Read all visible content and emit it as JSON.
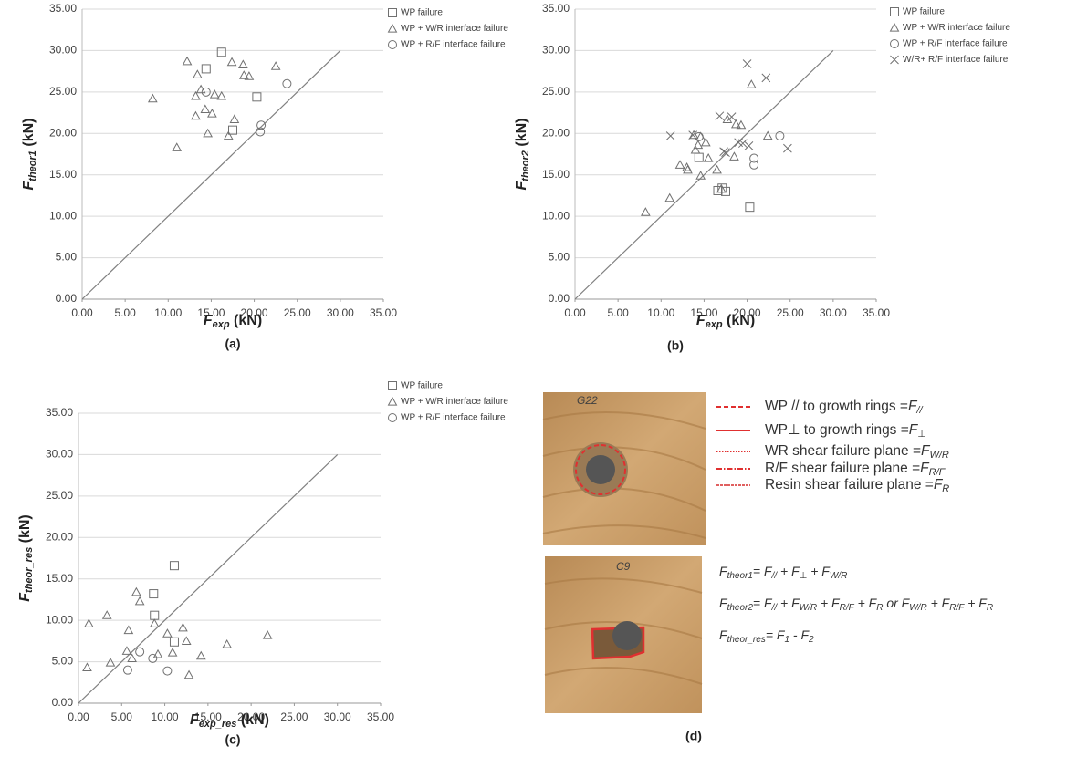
{
  "chart_data": [
    {
      "type": "scatter",
      "caption": "(a)",
      "x_label": {
        "symbol": "F",
        "subscript": "exp",
        "unit": " (kN)"
      },
      "y_label": {
        "symbol": "F",
        "subscript": "theor1",
        "unit": " (kN)"
      },
      "xlim": [
        0,
        35
      ],
      "ylim": [
        0,
        35
      ],
      "xticks": [
        {
          "value": 0,
          "label": "0.00"
        },
        {
          "value": 5,
          "label": "5.00"
        },
        {
          "value": 10,
          "label": "10.00"
        },
        {
          "value": 15,
          "label": "15.00"
        },
        {
          "value": 20,
          "label": "20.00"
        },
        {
          "value": 25,
          "label": "25.00"
        },
        {
          "value": 30,
          "label": "30.00"
        },
        {
          "value": 35,
          "label": "35.00"
        }
      ],
      "yticks": [
        {
          "value": 0,
          "label": "0.00"
        },
        {
          "value": 5,
          "label": "5.00"
        },
        {
          "value": 10,
          "label": "10.00"
        },
        {
          "value": 15,
          "label": "15.00"
        },
        {
          "value": 20,
          "label": "20.00"
        },
        {
          "value": 25,
          "label": "25.00"
        },
        {
          "value": 30,
          "label": "30.00"
        },
        {
          "value": 35,
          "label": "35.00"
        }
      ],
      "grid": true,
      "reference_line": {
        "x": [
          0,
          30
        ],
        "y": [
          0,
          30
        ],
        "color": "#808080"
      },
      "series": [
        {
          "name": "WP failure",
          "marker": "square",
          "color": "#707070",
          "x": [
            16.2,
            14.4,
            20.3,
            17.5
          ],
          "y": [
            29.8,
            27.8,
            24.4,
            20.4
          ]
        },
        {
          "name": "WP + W/R interface failure",
          "marker": "triangle",
          "color": "#707070",
          "x": [
            12.2,
            8.2,
            11.0,
            13.4,
            13.2,
            13.8,
            13.2,
            14.3,
            14.6,
            15.1,
            15.4,
            16.2,
            17.4,
            17.7,
            17.0,
            18.7,
            18.8,
            19.4,
            22.5
          ],
          "y": [
            28.7,
            24.2,
            18.3,
            27.1,
            24.5,
            25.3,
            22.1,
            22.9,
            20.0,
            22.4,
            24.7,
            24.5,
            28.6,
            21.7,
            19.7,
            28.3,
            27.0,
            26.9,
            28.1
          ]
        },
        {
          "name": "WP + R/F interface failure",
          "marker": "circle",
          "color": "#707070",
          "x": [
            14.4,
            20.8,
            20.7,
            23.8
          ],
          "y": [
            25.0,
            21.0,
            20.2,
            26.0
          ]
        }
      ]
    },
    {
      "type": "scatter",
      "caption": "(b)",
      "x_label": {
        "symbol": "F",
        "subscript": "exp",
        "unit": " (kN)"
      },
      "y_label": {
        "symbol": "F",
        "subscript": "theor2",
        "unit": " (kN)"
      },
      "xlim": [
        0,
        35
      ],
      "ylim": [
        0,
        35
      ],
      "xticks": [
        {
          "value": 0,
          "label": "0.00"
        },
        {
          "value": 5,
          "label": "5.00"
        },
        {
          "value": 10,
          "label": "10.00"
        },
        {
          "value": 15,
          "label": "15.00"
        },
        {
          "value": 20,
          "label": "20.00"
        },
        {
          "value": 25,
          "label": "25.00"
        },
        {
          "value": 30,
          "label": "30.00"
        },
        {
          "value": 35,
          "label": "35.00"
        }
      ],
      "yticks": [
        {
          "value": 0,
          "label": "0.00"
        },
        {
          "value": 5,
          "label": "5.00"
        },
        {
          "value": 10,
          "label": "10.00"
        },
        {
          "value": 15,
          "label": "15.00"
        },
        {
          "value": 20,
          "label": "20.00"
        },
        {
          "value": 25,
          "label": "25.00"
        },
        {
          "value": 30,
          "label": "30.00"
        },
        {
          "value": 35,
          "label": "35.00"
        }
      ],
      "grid": true,
      "reference_line": {
        "x": [
          0,
          30
        ],
        "y": [
          0,
          30
        ],
        "color": "#808080"
      },
      "series": [
        {
          "name": "WP failure",
          "marker": "square",
          "color": "#707070",
          "x": [
            14.4,
            16.6,
            17.5,
            20.3,
            17.1
          ],
          "y": [
            17.1,
            13.1,
            13.0,
            11.1,
            13.4
          ]
        },
        {
          "name": "WP + W/R interface failure",
          "marker": "triangle",
          "color": "#707070",
          "x": [
            8.2,
            11.0,
            12.2,
            13.0,
            13.1,
            13.8,
            14.0,
            14.3,
            14.6,
            15.2,
            15.5,
            16.5,
            17.0,
            17.7,
            18.5,
            18.7,
            19.3,
            20.5,
            22.4,
            14.6
          ],
          "y": [
            10.5,
            12.2,
            16.2,
            15.9,
            15.6,
            19.8,
            18.0,
            18.6,
            14.9,
            18.9,
            17.0,
            15.6,
            13.3,
            21.7,
            17.2,
            21.1,
            21.0,
            25.9,
            19.7,
            19.6
          ]
        },
        {
          "name": "WP + R/F interface failure",
          "marker": "circle",
          "color": "#707070",
          "x": [
            14.4,
            20.8,
            20.8,
            23.8
          ],
          "y": [
            19.6,
            17.0,
            16.2,
            19.7
          ]
        },
        {
          "name": "W/R+ R/F interface failure",
          "marker": "cross",
          "color": "#707070",
          "x": [
            11.1,
            13.7,
            16.8,
            17.3,
            18.2,
            19.0,
            19.5,
            20.0,
            20.2,
            22.2,
            24.7,
            17.5
          ],
          "y": [
            19.7,
            19.8,
            22.1,
            17.8,
            22.0,
            18.9,
            18.8,
            28.4,
            18.5,
            26.7,
            18.2,
            17.7
          ]
        }
      ]
    },
    {
      "type": "scatter",
      "caption": "(c)",
      "x_label": {
        "symbol": "F",
        "subscript": "exp_res",
        "unit": " (kN)"
      },
      "y_label": {
        "symbol": "F",
        "subscript": "theor_res",
        "unit": " (kN)"
      },
      "xlim": [
        0,
        35
      ],
      "ylim": [
        0,
        35
      ],
      "xticks": [
        {
          "value": 0,
          "label": "0.00"
        },
        {
          "value": 5,
          "label": "5.00"
        },
        {
          "value": 10,
          "label": "10.00"
        },
        {
          "value": 15,
          "label": "15.00"
        },
        {
          "value": 20,
          "label": "20.00"
        },
        {
          "value": 25,
          "label": "25.00"
        },
        {
          "value": 30,
          "label": "30.00"
        },
        {
          "value": 35,
          "label": "35.00"
        }
      ],
      "yticks": [
        {
          "value": 0,
          "label": "0.00"
        },
        {
          "value": 5,
          "label": "5.00"
        },
        {
          "value": 10,
          "label": "10.00"
        },
        {
          "value": 15,
          "label": "15.00"
        },
        {
          "value": 20,
          "label": "20.00"
        },
        {
          "value": 25,
          "label": "25.00"
        },
        {
          "value": 30,
          "label": "30.00"
        },
        {
          "value": 35,
          "label": "35.00"
        }
      ],
      "grid": true,
      "reference_line": {
        "x": [
          0,
          30
        ],
        "y": [
          0,
          30
        ],
        "color": "#808080"
      },
      "series": [
        {
          "name": "WP failure",
          "marker": "square",
          "color": "#707070",
          "x": [
            11.1,
            8.7,
            8.8,
            11.1
          ],
          "y": [
            16.6,
            13.2,
            10.6,
            7.4
          ]
        },
        {
          "name": "WP + W/R interface failure",
          "marker": "triangle",
          "color": "#707070",
          "x": [
            1.2,
            1.0,
            3.3,
            3.7,
            5.8,
            5.6,
            6.2,
            6.7,
            7.1,
            8.8,
            9.2,
            10.3,
            10.9,
            12.1,
            12.5,
            12.8,
            14.2,
            17.2,
            21.9
          ],
          "y": [
            9.6,
            4.3,
            10.6,
            4.9,
            8.8,
            6.3,
            5.4,
            13.4,
            12.3,
            9.6,
            5.9,
            8.4,
            6.1,
            9.1,
            7.5,
            3.4,
            5.7,
            7.1,
            8.2
          ]
        },
        {
          "name": "WP + R/F interface failure",
          "marker": "circle",
          "color": "#707070",
          "x": [
            7.1,
            5.7,
            8.6,
            10.3
          ],
          "y": [
            6.2,
            4.0,
            5.4,
            3.9
          ]
        }
      ]
    }
  ],
  "panel_d": {
    "caption": "(d)",
    "photo_labels": [
      "G22",
      "C9"
    ],
    "legend": [
      {
        "text": "WP // to growth rings =",
        "symbol": "F",
        "sub": "//",
        "style": "dashed"
      },
      {
        "text": "WP⊥ to growth rings =",
        "symbol": "F",
        "sub": "⊥",
        "style": "solid"
      },
      {
        "text": "WR shear failure plane =",
        "symbol": "F",
        "sub": "W/R",
        "style": "dotted"
      },
      {
        "text": "R/F shear failure plane =",
        "symbol": "F",
        "sub": "R/F",
        "style": "dashdot"
      },
      {
        "text": "Resin shear failure plane =",
        "symbol": "F",
        "sub": "R",
        "style": "thin"
      }
    ],
    "formulas": [
      [
        {
          "text": "F",
          "sub": "theor1"
        },
        {
          "text": "= F",
          "sub": "//"
        },
        {
          "text": " + F",
          "sub": "⊥"
        },
        {
          "text": " + F",
          "sub": "W/R"
        }
      ],
      [
        {
          "text": "F",
          "sub": "theor2"
        },
        {
          "text": "= F",
          "sub": "//"
        },
        {
          "text": " + F",
          "sub": "W/R"
        },
        {
          "text": " + F",
          "sub": "R/F"
        },
        {
          "text": " + F",
          "sub": "R"
        },
        {
          "text": " or F",
          "sub": "W/R"
        },
        {
          "text": " + F",
          "sub": "R/F"
        },
        {
          "text": " + F",
          "sub": "R"
        }
      ],
      [
        {
          "text": "F",
          "sub": "theor_res"
        },
        {
          "text": "= F",
          "sub": "1"
        },
        {
          "text": " - F",
          "sub": "2"
        }
      ]
    ]
  }
}
